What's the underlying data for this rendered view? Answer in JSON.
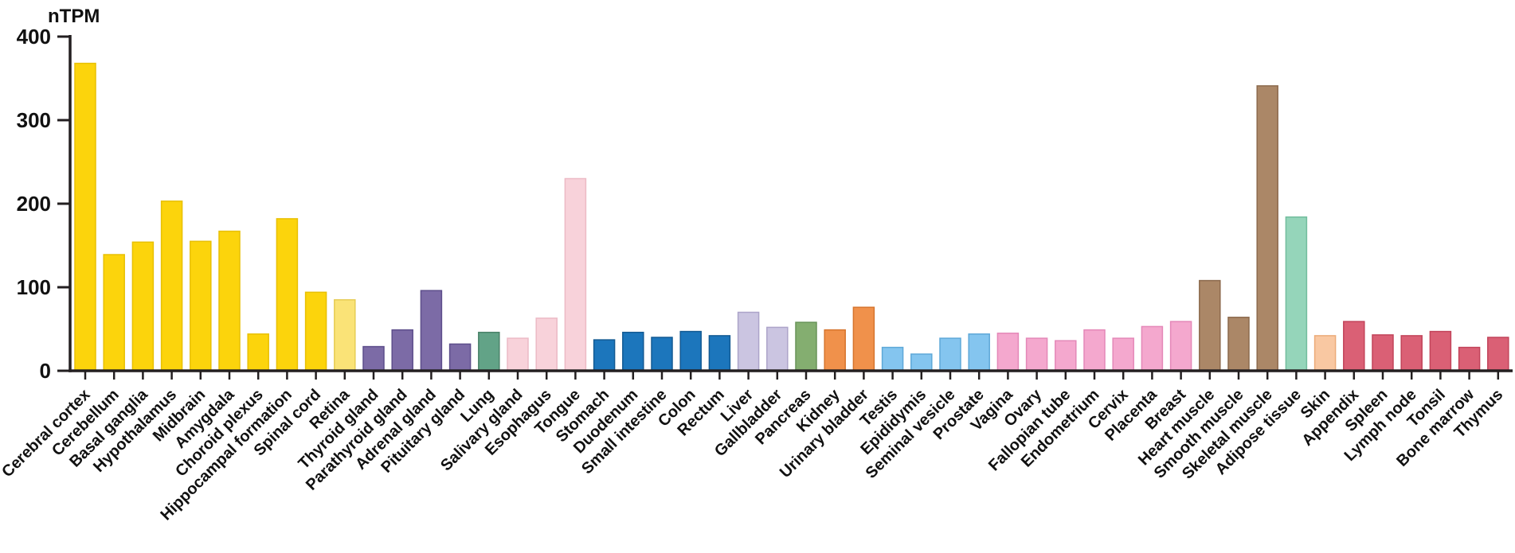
{
  "chart_data": {
    "type": "bar",
    "title": "nTPM",
    "ylabel": "nTPM",
    "xlabel": "",
    "ylim": [
      0,
      400
    ],
    "yticks": [
      0,
      100,
      200,
      300,
      400
    ],
    "grid": false,
    "legend": "none",
    "axis_color": "#231f20",
    "label_color": "#111111",
    "categories": [
      "Cerebral cortex",
      "Cerebellum",
      "Basal ganglia",
      "Hypothalamus",
      "Midbrain",
      "Amygdala",
      "Choroid plexus",
      "Hippocampal formation",
      "Spinal cord",
      "Retina",
      "Thyroid gland",
      "Parathyroid gland",
      "Adrenal gland",
      "Pituitary gland",
      "Lung",
      "Salivary gland",
      "Esophagus",
      "Tongue",
      "Stomach",
      "Duodenum",
      "Small intestine",
      "Colon",
      "Rectum",
      "Liver",
      "Gallbladder",
      "Pancreas",
      "Kidney",
      "Urinary bladder",
      "Testis",
      "Epididymis",
      "Seminal vesicle",
      "Prostate",
      "Vagina",
      "Ovary",
      "Fallopian tube",
      "Endometrium",
      "Cervix",
      "Placenta",
      "Breast",
      "Heart muscle",
      "Smooth muscle",
      "Skeletal muscle",
      "Adipose tissue",
      "Skin",
      "Appendix",
      "Spleen",
      "Lymph node",
      "Tonsil",
      "Bone marrow",
      "Thymus"
    ],
    "values": [
      368,
      139,
      154,
      203,
      155,
      167,
      44,
      182,
      94,
      85,
      29,
      49,
      96,
      32,
      46,
      39,
      63,
      230,
      37,
      46,
      40,
      47,
      42,
      70,
      52,
      58,
      49,
      76,
      28,
      20,
      39,
      44,
      45,
      39,
      36,
      49,
      39,
      53,
      59,
      108,
      64,
      341,
      184,
      42,
      59,
      43,
      42,
      47,
      28,
      40
    ],
    "groups": [
      "brain",
      "brain",
      "brain",
      "brain",
      "brain",
      "brain",
      "brain",
      "brain",
      "brain",
      "retina",
      "endocrine",
      "endocrine",
      "endocrine",
      "endocrine",
      "lung",
      "proximal_digestive",
      "proximal_digestive",
      "proximal_digestive",
      "gi_tract",
      "gi_tract",
      "gi_tract",
      "gi_tract",
      "gi_tract",
      "liver_gallbladder",
      "liver_gallbladder",
      "pancreas",
      "kidney_bladder",
      "kidney_bladder",
      "male_tissues",
      "male_tissues",
      "male_tissues",
      "male_tissues",
      "female_tissues",
      "female_tissues",
      "female_tissues",
      "female_tissues",
      "female_tissues",
      "female_tissues",
      "female_tissues",
      "muscle",
      "muscle",
      "muscle",
      "adipose",
      "skin",
      "immune",
      "immune",
      "immune",
      "immune",
      "immune",
      "immune"
    ],
    "palette": {
      "brain": {
        "fill": "#FCD40C",
        "stroke": "#E8C004"
      },
      "retina": {
        "fill": "#FAE377",
        "stroke": "#E6CC55"
      },
      "endocrine": {
        "fill": "#7C6BA6",
        "stroke": "#5D4E8B"
      },
      "lung": {
        "fill": "#62A387",
        "stroke": "#4A8269"
      },
      "proximal_digestive": {
        "fill": "#F8D2DA",
        "stroke": "#ECBAC5"
      },
      "gi_tract": {
        "fill": "#1C76BC",
        "stroke": "#135A93"
      },
      "liver_gallbladder": {
        "fill": "#CBC5E1",
        "stroke": "#ACA4C9"
      },
      "pancreas": {
        "fill": "#84AE70",
        "stroke": "#699459"
      },
      "kidney_bladder": {
        "fill": "#F0914B",
        "stroke": "#D6752E"
      },
      "male_tissues": {
        "fill": "#84C5EF",
        "stroke": "#5EA8D8"
      },
      "female_tissues": {
        "fill": "#F4A8CE",
        "stroke": "#E488B8"
      },
      "muscle": {
        "fill": "#AB8767",
        "stroke": "#8C6A4D"
      },
      "adipose": {
        "fill": "#95D5BA",
        "stroke": "#72BD9E"
      },
      "skin": {
        "fill": "#F9C8A2",
        "stroke": "#ECAB79"
      },
      "immune": {
        "fill": "#DA6075",
        "stroke": "#C2445A"
      }
    }
  }
}
